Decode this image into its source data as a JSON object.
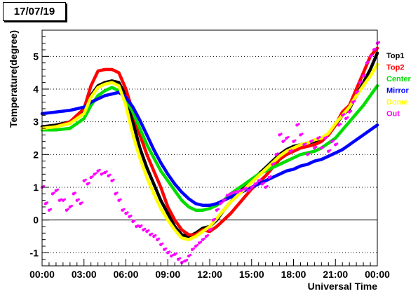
{
  "date_label": "17/07/19",
  "chart_data": {
    "type": "line",
    "xlabel": "Universal Time",
    "ylabel": "Temperature(degree)",
    "xlim": [
      0,
      24
    ],
    "ylim": [
      -1.4,
      5.8
    ],
    "x_ticks": [
      0,
      3,
      6,
      9,
      12,
      15,
      18,
      21,
      24
    ],
    "x_tick_labels": [
      "00:00",
      "03:00",
      "06:00",
      "09:00",
      "12:00",
      "15:00",
      "18:00",
      "21:00",
      "00:00"
    ],
    "y_ticks": [
      -1,
      0,
      1,
      2,
      3,
      4,
      5
    ],
    "y_tick_labels": [
      "-1",
      "0",
      "1",
      "2",
      "3",
      "4",
      "5"
    ],
    "grid": "horizontal dotted",
    "legend_position": "right",
    "series": [
      {
        "name": "Top1",
        "color": "#000000",
        "x": [
          0,
          1,
          2,
          3,
          3.5,
          4,
          4.5,
          5,
          5.5,
          6,
          6.5,
          7,
          7.5,
          8,
          8.5,
          9,
          9.5,
          10,
          10.5,
          11,
          11.5,
          12,
          12.5,
          13,
          13.5,
          14,
          14.5,
          15,
          15.5,
          16,
          16.5,
          17,
          17.5,
          18,
          18.5,
          19,
          19.5,
          20,
          20.5,
          21,
          21.5,
          22,
          22.5,
          23,
          23.5,
          24
        ],
        "y": [
          2.85,
          2.9,
          3.0,
          3.3,
          3.8,
          4.1,
          4.2,
          4.25,
          4.2,
          3.8,
          3.0,
          2.2,
          1.6,
          1.1,
          0.6,
          0.2,
          -0.2,
          -0.45,
          -0.5,
          -0.4,
          -0.25,
          -0.2,
          0.0,
          0.3,
          0.55,
          0.8,
          1.0,
          1.2,
          1.4,
          1.6,
          1.8,
          2.0,
          2.15,
          2.25,
          2.3,
          2.35,
          2.4,
          2.45,
          2.6,
          2.9,
          3.2,
          3.4,
          3.8,
          4.2,
          4.6,
          5.1
        ]
      },
      {
        "name": "Top2",
        "color": "#ff0000",
        "x": [
          0,
          1,
          2,
          3,
          3.5,
          4,
          4.5,
          5,
          5.5,
          6,
          6.5,
          7,
          7.5,
          8,
          8.5,
          9,
          9.5,
          10,
          10.5,
          11,
          11.5,
          12,
          12.5,
          13,
          13.5,
          14,
          14.5,
          15,
          15.5,
          16,
          16.5,
          17,
          17.5,
          18,
          18.5,
          19,
          19.5,
          20,
          20.5,
          21,
          21.5,
          22,
          22.5,
          23,
          23.5,
          24
        ],
        "y": [
          2.8,
          2.85,
          3.0,
          3.4,
          4.1,
          4.55,
          4.6,
          4.6,
          4.5,
          4.0,
          3.3,
          2.6,
          2.0,
          1.5,
          1.0,
          0.4,
          0.0,
          -0.3,
          -0.45,
          -0.45,
          -0.3,
          -0.35,
          -0.2,
          0.0,
          0.2,
          0.45,
          0.7,
          0.95,
          1.15,
          1.35,
          1.6,
          1.85,
          2.0,
          2.1,
          2.2,
          2.25,
          2.3,
          2.4,
          2.6,
          2.9,
          3.3,
          3.5,
          4.0,
          4.5,
          5.0,
          5.25
        ]
      },
      {
        "name": "Center",
        "color": "#00dd00",
        "x": [
          0,
          1,
          2,
          3,
          3.5,
          4,
          4.5,
          5,
          5.5,
          6,
          6.5,
          7,
          7.5,
          8,
          8.5,
          9,
          9.5,
          10,
          10.5,
          11,
          11.5,
          12,
          12.5,
          13,
          13.5,
          14,
          14.5,
          15,
          15.5,
          16,
          16.5,
          17,
          17.5,
          18,
          18.5,
          19,
          19.5,
          20,
          20.5,
          21,
          21.5,
          22,
          22.5,
          23,
          23.5,
          24
        ],
        "y": [
          2.75,
          2.75,
          2.8,
          3.1,
          3.5,
          3.8,
          3.95,
          4.05,
          3.95,
          3.7,
          3.3,
          2.8,
          2.3,
          1.9,
          1.5,
          1.2,
          0.9,
          0.6,
          0.4,
          0.3,
          0.3,
          0.35,
          0.45,
          0.6,
          0.8,
          0.95,
          1.1,
          1.25,
          1.4,
          1.5,
          1.6,
          1.7,
          1.8,
          1.9,
          2.0,
          2.05,
          2.1,
          2.2,
          2.35,
          2.5,
          2.75,
          3.0,
          3.25,
          3.5,
          3.8,
          4.1
        ]
      },
      {
        "name": "Mirror",
        "color": "#0000ff",
        "x": [
          0,
          1,
          2,
          3,
          3.5,
          4,
          4.5,
          5,
          5.5,
          6,
          6.5,
          7,
          7.5,
          8,
          8.5,
          9,
          9.5,
          10,
          10.5,
          11,
          11.5,
          12,
          12.5,
          13,
          13.5,
          14,
          14.5,
          15,
          15.5,
          16,
          16.5,
          17,
          17.5,
          18,
          18.5,
          19,
          19.5,
          20,
          20.5,
          21,
          21.5,
          22,
          22.5,
          23,
          23.5,
          24
        ],
        "y": [
          3.25,
          3.3,
          3.35,
          3.45,
          3.6,
          3.7,
          3.8,
          3.85,
          3.9,
          3.75,
          3.45,
          3.05,
          2.6,
          2.15,
          1.75,
          1.4,
          1.1,
          0.85,
          0.65,
          0.5,
          0.45,
          0.45,
          0.5,
          0.6,
          0.7,
          0.8,
          0.9,
          1.0,
          1.1,
          1.2,
          1.3,
          1.4,
          1.5,
          1.55,
          1.65,
          1.7,
          1.8,
          1.85,
          1.95,
          2.05,
          2.15,
          2.3,
          2.45,
          2.6,
          2.75,
          2.9
        ]
      },
      {
        "name": "Dome",
        "color": "#ffff00",
        "x": [
          0,
          1,
          2,
          3,
          3.5,
          4,
          4.5,
          5,
          5.5,
          6,
          6.5,
          7,
          7.5,
          8,
          8.5,
          9,
          9.5,
          10,
          10.5,
          11,
          11.5,
          12,
          12.5,
          13,
          13.5,
          14,
          14.5,
          15,
          15.5,
          16,
          16.5,
          17,
          17.5,
          18,
          18.5,
          19,
          19.5,
          20,
          20.5,
          21,
          21.5,
          22,
          22.5,
          23,
          23.5,
          24
        ],
        "y": [
          2.8,
          2.85,
          2.95,
          3.25,
          3.75,
          4.05,
          4.15,
          4.2,
          4.1,
          3.5,
          2.6,
          1.9,
          1.3,
          0.8,
          0.35,
          0.0,
          -0.3,
          -0.55,
          -0.6,
          -0.5,
          -0.35,
          -0.2,
          0.05,
          0.3,
          0.55,
          0.75,
          0.95,
          1.15,
          1.35,
          1.55,
          1.75,
          1.95,
          2.1,
          2.2,
          2.3,
          2.35,
          2.45,
          2.5,
          2.65,
          2.95,
          3.2,
          3.45,
          3.8,
          4.1,
          4.4,
          4.75
        ]
      },
      {
        "name": "Out",
        "color": "#ff00ff",
        "marker": "scatter",
        "x": [
          0,
          0.25,
          0.5,
          0.75,
          1,
          1.25,
          1.5,
          1.75,
          2,
          2.25,
          2.5,
          2.75,
          3,
          3.25,
          3.5,
          3.75,
          4,
          4.25,
          4.5,
          4.75,
          5,
          5.25,
          5.5,
          5.75,
          6,
          6.25,
          6.5,
          6.75,
          7,
          7.25,
          7.5,
          7.75,
          8,
          8.25,
          8.5,
          8.75,
          9,
          9.25,
          9.5,
          9.75,
          10,
          10.25,
          10.5,
          10.75,
          11,
          11.25,
          11.5,
          11.75,
          12,
          12.25,
          12.5,
          12.75,
          13,
          13.25,
          13.5,
          13.75,
          14,
          14.25,
          14.5,
          14.75,
          15,
          15.25,
          15.5,
          15.75,
          16,
          16.25,
          16.5,
          16.75,
          17,
          17.25,
          17.5,
          17.75,
          18,
          18.25,
          18.5,
          18.75,
          19,
          19.25,
          19.5,
          19.75,
          20,
          20.25,
          20.5,
          20.75,
          21,
          21.25,
          21.5,
          21.75,
          22,
          22.25,
          22.5,
          22.75,
          23,
          23.25,
          23.5,
          23.75,
          24
        ],
        "y": [
          1.0,
          0.5,
          0.3,
          0.8,
          0.9,
          0.6,
          0.6,
          0.3,
          0.4,
          0.8,
          0.6,
          0.5,
          1.2,
          1.1,
          1.3,
          1.4,
          1.5,
          1.4,
          1.45,
          1.35,
          1.2,
          0.8,
          0.6,
          0.3,
          0.2,
          0.1,
          -0.05,
          -0.2,
          -0.2,
          -0.3,
          -0.35,
          -0.45,
          -0.5,
          -0.6,
          -0.75,
          -0.9,
          -1.0,
          -1.1,
          -1.05,
          -1.2,
          -1.3,
          -1.25,
          -1.1,
          -0.9,
          -0.8,
          -0.7,
          -0.6,
          -0.5,
          -0.3,
          0.0,
          0.3,
          0.5,
          0.6,
          0.75,
          0.8,
          0.85,
          0.85,
          0.9,
          0.95,
          0.9,
          1.0,
          1.1,
          1.2,
          1.1,
          1.0,
          1.3,
          1.7,
          2.0,
          2.6,
          2.4,
          2.5,
          2.1,
          2.4,
          2.9,
          2.6,
          2.3,
          2.0,
          2.4,
          2.2,
          2.5,
          2.2,
          2.5,
          2.1,
          2.4,
          2.3,
          2.9,
          3.2,
          3.1,
          3.3,
          3.6,
          3.9,
          4.2,
          4.4,
          4.8,
          5.0,
          5.2,
          5.4
        ]
      }
    ]
  }
}
